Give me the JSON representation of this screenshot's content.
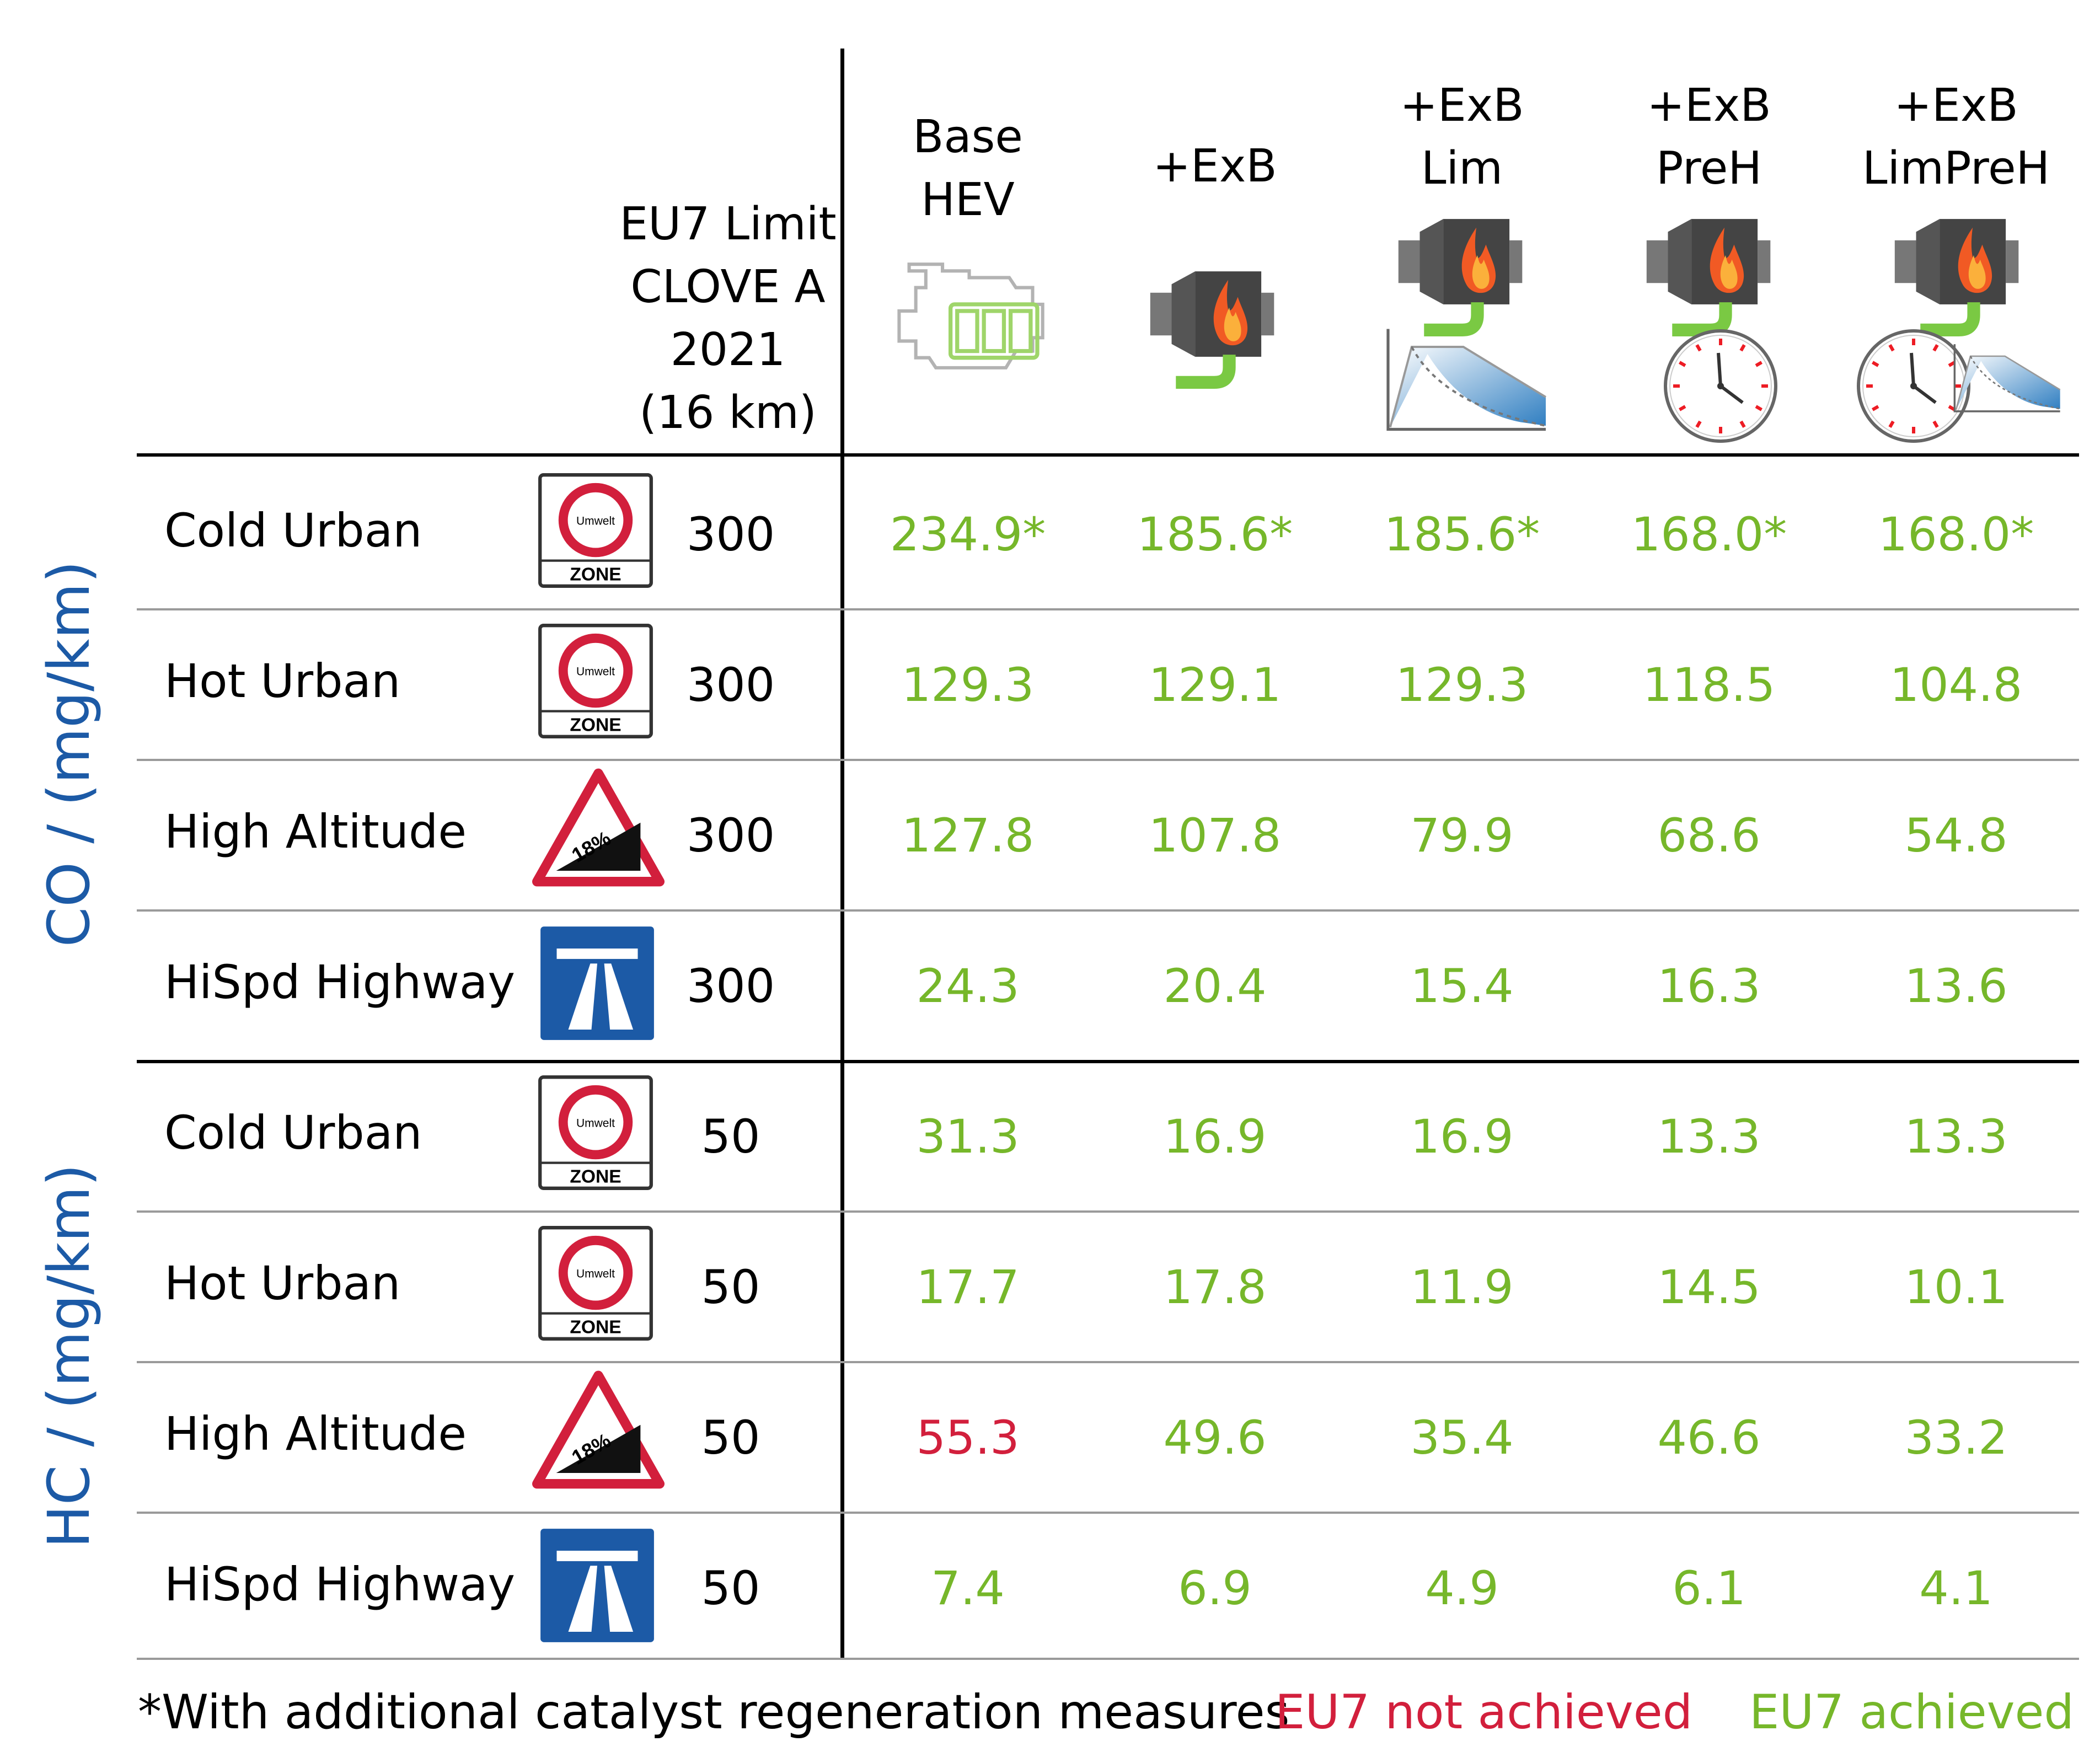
{
  "chart_data": {
    "type": "table",
    "limit_header": [
      "EU7 Limit",
      "CLOVE A",
      "2021",
      "(16 km)"
    ],
    "columns": [
      {
        "label_lines": [
          "Base",
          "HEV"
        ],
        "icon": "engine-battery-icon"
      },
      {
        "label_lines": [
          "+ExB"
        ],
        "icon": "exhaust-burner-icon"
      },
      {
        "label_lines": [
          "+ExB",
          "Lim"
        ],
        "icon": "exhaust-burner-limit-curve-icon"
      },
      {
        "label_lines": [
          "+ExB",
          "PreH"
        ],
        "icon": "exhaust-burner-clock-icon"
      },
      {
        "label_lines": [
          "+ExB",
          "LimPreH"
        ],
        "icon": "exhaust-burner-clock-limit-icon"
      }
    ],
    "groups": [
      {
        "label": "CO / (mg/km)",
        "rows": [
          {
            "label": "Cold Urban",
            "icon": "environmental-zone-sign-icon",
            "limit": "300",
            "values": [
              "234.9*",
              "185.6*",
              "185.6*",
              "168.0*",
              "168.0*"
            ],
            "status": [
              "ok",
              "ok",
              "ok",
              "ok",
              "ok"
            ]
          },
          {
            "label": "Hot Urban",
            "icon": "environmental-zone-sign-icon",
            "limit": "300",
            "values": [
              "129.3",
              "129.1",
              "129.3",
              "118.5",
              "104.8"
            ],
            "status": [
              "ok",
              "ok",
              "ok",
              "ok",
              "ok"
            ]
          },
          {
            "label": "High Altitude",
            "icon": "steep-grade-sign-icon",
            "limit": "300",
            "values": [
              "127.8",
              "107.8",
              "79.9",
              "68.6",
              "54.8"
            ],
            "status": [
              "ok",
              "ok",
              "ok",
              "ok",
              "ok"
            ]
          },
          {
            "label": "HiSpd Highway",
            "icon": "motorway-sign-icon",
            "limit": "300",
            "values": [
              "24.3",
              "20.4",
              "15.4",
              "16.3",
              "13.6"
            ],
            "status": [
              "ok",
              "ok",
              "ok",
              "ok",
              "ok"
            ]
          }
        ]
      },
      {
        "label": "HC / (mg/km)",
        "rows": [
          {
            "label": "Cold Urban",
            "icon": "environmental-zone-sign-icon",
            "limit": "50",
            "values": [
              "31.3",
              "16.9",
              "16.9",
              "13.3",
              "13.3"
            ],
            "status": [
              "ok",
              "ok",
              "ok",
              "ok",
              "ok"
            ]
          },
          {
            "label": "Hot Urban",
            "icon": "environmental-zone-sign-icon",
            "limit": "50",
            "values": [
              "17.7",
              "17.8",
              "11.9",
              "14.5",
              "10.1"
            ],
            "status": [
              "ok",
              "ok",
              "ok",
              "ok",
              "ok"
            ]
          },
          {
            "label": "High Altitude",
            "icon": "steep-grade-sign-icon",
            "limit": "50",
            "values": [
              "55.3",
              "49.6",
              "35.4",
              "46.6",
              "33.2"
            ],
            "status": [
              "bad",
              "ok",
              "ok",
              "ok",
              "ok"
            ]
          },
          {
            "label": "HiSpd Highway",
            "icon": "motorway-sign-icon",
            "limit": "50",
            "values": [
              "7.4",
              "6.9",
              "4.9",
              "6.1",
              "4.1"
            ],
            "status": [
              "ok",
              "ok",
              "ok",
              "ok",
              "ok"
            ]
          }
        ]
      }
    ],
    "sign_text": {
      "zone_top": "Umwelt",
      "zone_bottom": "ZONE",
      "grade": "18%"
    },
    "colors": {
      "achieved": "#76b72a",
      "not_achieved": "#d21f3c",
      "group_label": "#1c5aa6"
    },
    "legend": {
      "note": "*With additional catalyst regeneration measures",
      "not_achieved": "EU7 not achieved",
      "achieved": "EU7 achieved"
    }
  }
}
